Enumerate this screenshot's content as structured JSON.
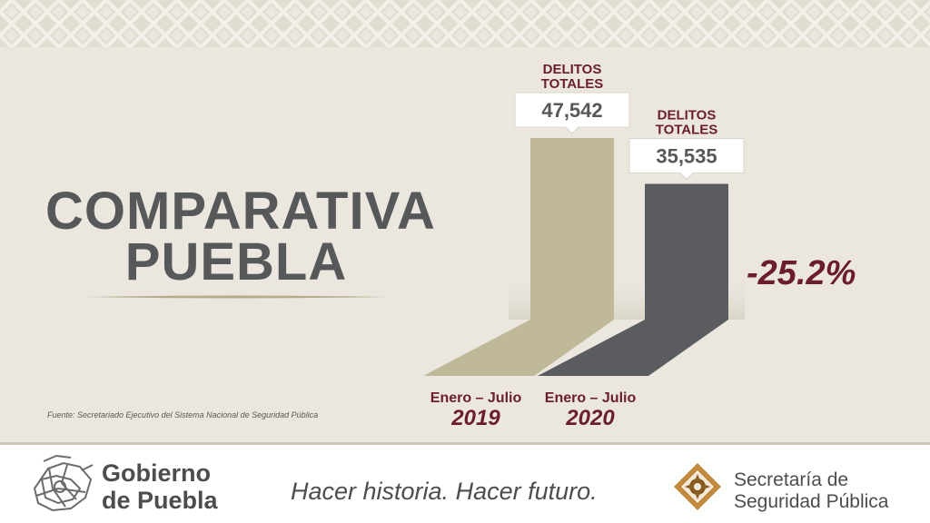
{
  "title_line1": "COMPARATIVA",
  "title_line2": "PUEBLA",
  "source": "Fuente: Secretariado Ejecutivo del Sistema Nacional de Seguridad Pública",
  "change_label": "-25.2%",
  "colors": {
    "bar_2019": "#bfb99a",
    "bar_2020": "#5b5c60",
    "accent": "#6b1d2f",
    "panel": "#ebe7df"
  },
  "chart_data": {
    "type": "bar",
    "categories": [
      "2019",
      "2020"
    ],
    "category_sublabels": [
      "Enero – Julio",
      "Enero – Julio"
    ],
    "bar_headers": [
      "DELITOS TOTALES",
      "DELITOS TOTALES"
    ],
    "values": [
      47542,
      35535
    ],
    "value_labels": [
      "47,542",
      "35,535"
    ],
    "title": "COMPARATIVA PUEBLA"
  },
  "footer": {
    "gov_name_line1": "Gobierno",
    "gov_name_line2": "de Puebla",
    "slogan": "Hacer historia. Hacer futuro.",
    "ssp_name_line1": "Secretaría de",
    "ssp_name_line2": "Seguridad Pública"
  }
}
